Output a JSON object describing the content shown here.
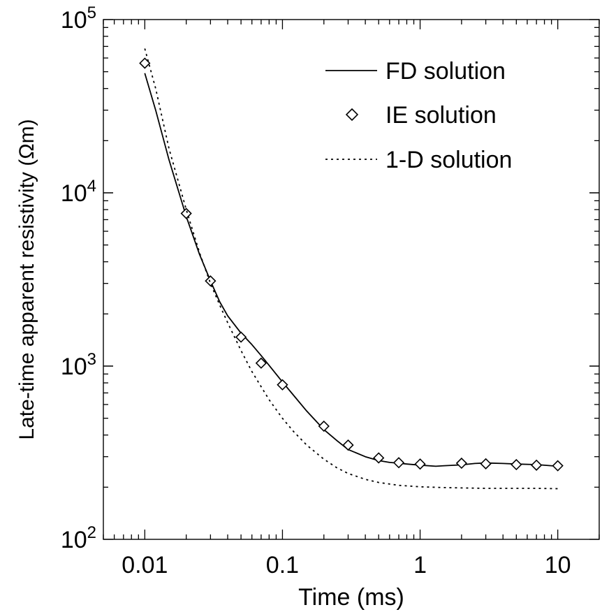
{
  "chart_data": {
    "type": "line",
    "xlabel": "Time (ms)",
    "ylabel": "Late-time apparent resistivity (Ωm)",
    "xscale": "log",
    "yscale": "log",
    "xlim": [
      0.005,
      20
    ],
    "ylim": [
      100,
      100000
    ],
    "x_ticks": [
      {
        "value": 0.01,
        "label": "0.01"
      },
      {
        "value": 0.1,
        "label": "0.1"
      },
      {
        "value": 1,
        "label": "1"
      },
      {
        "value": 10,
        "label": "10"
      }
    ],
    "y_ticks": [
      {
        "value": 100,
        "base": "10",
        "exp": "2"
      },
      {
        "value": 1000,
        "base": "10",
        "exp": "3"
      },
      {
        "value": 10000,
        "base": "10",
        "exp": "4"
      },
      {
        "value": 100000,
        "base": "10",
        "exp": "5"
      }
    ],
    "grid": false,
    "legend_position": "top-right",
    "series": [
      {
        "name": "FD solution",
        "style": "solid",
        "marker": "none",
        "color": "#000000",
        "x": [
          0.01,
          0.012,
          0.015,
          0.02,
          0.025,
          0.03,
          0.035,
          0.04,
          0.05,
          0.06,
          0.07,
          0.08,
          0.1,
          0.12,
          0.15,
          0.2,
          0.25,
          0.3,
          0.4,
          0.5,
          0.6,
          0.7,
          0.8,
          1.0,
          1.3,
          1.5,
          2.0,
          2.5,
          3.0,
          4.0,
          5.0,
          7.0,
          10.0
        ],
        "y": [
          49000,
          30000,
          15500,
          7300,
          4400,
          3100,
          2350,
          1950,
          1550,
          1330,
          1150,
          1010,
          810,
          680,
          550,
          430,
          370,
          330,
          300,
          285,
          278,
          275,
          272,
          268,
          264,
          266,
          269,
          274,
          276,
          274,
          272,
          270,
          264
        ]
      },
      {
        "name": "IE solution",
        "style": "none",
        "marker": "diamond",
        "color": "#000000",
        "x": [
          0.01,
          0.02,
          0.03,
          0.05,
          0.07,
          0.1,
          0.2,
          0.3,
          0.5,
          0.7,
          1.0,
          2.0,
          3.0,
          5.0,
          7.0,
          10.0
        ],
        "y": [
          56000,
          7600,
          3100,
          1470,
          1040,
          780,
          450,
          350,
          295,
          277,
          272,
          275,
          273,
          270,
          268,
          266
        ]
      },
      {
        "name": "1-D solution",
        "style": "dotted",
        "marker": "none",
        "color": "#000000",
        "x": [
          0.01,
          0.012,
          0.015,
          0.02,
          0.025,
          0.03,
          0.035,
          0.04,
          0.05,
          0.06,
          0.08,
          0.1,
          0.12,
          0.15,
          0.2,
          0.25,
          0.3,
          0.4,
          0.5,
          0.7,
          1.0,
          1.5,
          2.0,
          3.0,
          5.0,
          7.0,
          10.0
        ],
        "y": [
          68000,
          40000,
          18000,
          8000,
          4500,
          3000,
          2250,
          1780,
          1230,
          930,
          640,
          500,
          420,
          350,
          290,
          258,
          240,
          222,
          213,
          205,
          201,
          199,
          198,
          197,
          197,
          197,
          196
        ]
      }
    ]
  }
}
